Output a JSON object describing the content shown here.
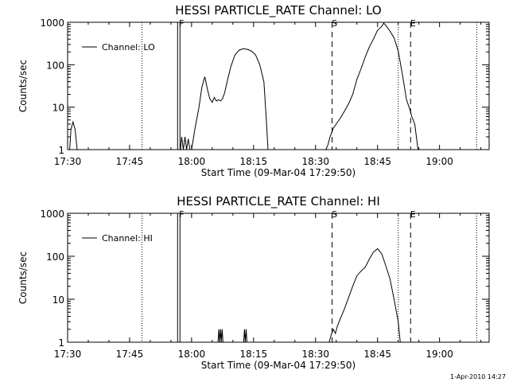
{
  "footer": {
    "timestamp": "1-Apr-2010 14:27"
  },
  "chart_data": [
    {
      "type": "line",
      "title": "HESSI PARTICLE_RATE Channel: LO",
      "xlabel": "Start Time (09-Mar-04 17:29:50)",
      "ylabel": "Counts/sec",
      "y_scale": "log",
      "xlim": [
        "17:30",
        "19:12"
      ],
      "ylim": [
        1,
        1000
      ],
      "x_ticks": [
        "17:30",
        "17:45",
        "18:00",
        "18:15",
        "18:30",
        "18:45",
        "19:00"
      ],
      "y_ticks": [
        "1",
        "10",
        "100",
        "1000"
      ],
      "legend": {
        "label": "Channel: LO",
        "position": "top-left"
      },
      "markers": [
        {
          "label": "F",
          "time": "17:57",
          "style": "solid"
        },
        {
          "label": "S",
          "time": "18:34",
          "style": "dashed"
        },
        {
          "label": "E",
          "time": "18:53",
          "style": "dashed"
        }
      ],
      "dotted_lines": [
        "17:48",
        "18:50",
        "19:09"
      ],
      "series": [
        {
          "name": "Channel: LO",
          "segments": [
            [
              [
                "17:30.5",
                1
              ],
              [
                "17:30.8",
                3
              ],
              [
                "17:31.3",
                4.5
              ],
              [
                "17:31.8",
                3
              ],
              [
                "17:32.3",
                1
              ]
            ],
            [
              [
                "17:57.3",
                1
              ],
              [
                "17:57.6",
                2
              ],
              [
                "17:58",
                1
              ],
              [
                "17:58.4",
                2
              ],
              [
                "17:58.8",
                1
              ],
              [
                "17:59.2",
                1.8
              ],
              [
                "17:59.6",
                1
              ],
              [
                "18:00",
                1
              ]
            ],
            [
              [
                "18:00",
                1
              ],
              [
                "18:00.8",
                3
              ],
              [
                "18:01.8",
                10
              ],
              [
                "18:02.5",
                30
              ],
              [
                "18:03.2",
                52
              ],
              [
                "18:03.9",
                25
              ],
              [
                "18:04.4",
                16
              ],
              [
                "18:05",
                13
              ],
              [
                "18:05.5",
                17
              ],
              [
                "18:06",
                14
              ],
              [
                "18:06.5",
                15
              ],
              [
                "18:07",
                14
              ],
              [
                "18:07.5",
                16
              ],
              [
                "18:08",
                22
              ],
              [
                "18:08.6",
                40
              ],
              [
                "18:09.5",
                90
              ],
              [
                "18:10.5",
                170
              ],
              [
                "18:11.5",
                220
              ],
              [
                "18:12.5",
                240
              ],
              [
                "18:13.5",
                230
              ],
              [
                "18:14.5",
                210
              ],
              [
                "18:15.5",
                170
              ],
              [
                "18:16.5",
                100
              ],
              [
                "18:17.5",
                40
              ],
              [
                "18:18.1",
                5
              ],
              [
                "18:18.5",
                1
              ]
            ],
            [
              [
                "18:32.5",
                1
              ],
              [
                "18:33",
                1.3
              ],
              [
                "18:33.5",
                2
              ],
              [
                "18:34.3",
                3.2
              ],
              [
                "18:35",
                4
              ],
              [
                "18:36",
                5.5
              ],
              [
                "18:37",
                8
              ],
              [
                "18:38",
                12
              ],
              [
                "18:39",
                20
              ],
              [
                "18:40",
                45
              ],
              [
                "18:41",
                80
              ],
              [
                "18:42",
                150
              ],
              [
                "18:43",
                260
              ],
              [
                "18:44",
                400
              ],
              [
                "18:45",
                650
              ],
              [
                "18:46",
                800
              ],
              [
                "18:46.5",
                950
              ],
              [
                "18:47",
                850
              ],
              [
                "18:48",
                620
              ],
              [
                "18:49",
                430
              ],
              [
                "18:50",
                210
              ],
              [
                "18:51",
                60
              ],
              [
                "18:52",
                15
              ],
              [
                "18:52.8",
                9
              ],
              [
                "18:53.3",
                6
              ],
              [
                "18:54",
                4
              ],
              [
                "18:54.8",
                1
              ]
            ]
          ]
        }
      ]
    },
    {
      "type": "line",
      "title": "HESSI PARTICLE_RATE Channel: HI",
      "xlabel": "Start Time (09-Mar-04 17:29:50)",
      "ylabel": "Counts/sec",
      "y_scale": "log",
      "xlim": [
        "17:30",
        "19:12"
      ],
      "ylim": [
        1,
        1000
      ],
      "x_ticks": [
        "17:30",
        "17:45",
        "18:00",
        "18:15",
        "18:30",
        "18:45",
        "19:00"
      ],
      "y_ticks": [
        "1",
        "10",
        "100",
        "1000"
      ],
      "legend": {
        "label": "Channel: HI",
        "position": "top-left"
      },
      "markers": [
        {
          "label": "F",
          "time": "17:57",
          "style": "solid"
        },
        {
          "label": "S",
          "time": "18:34",
          "style": "dashed"
        },
        {
          "label": "E",
          "time": "18:53",
          "style": "dashed"
        }
      ],
      "dotted_lines": [
        "17:48",
        "18:50",
        "19:09"
      ],
      "series": [
        {
          "name": "Channel: HI",
          "segments": [
            [
              [
                "18:06.4",
                1
              ],
              [
                "18:06.6",
                2
              ],
              [
                "18:06.8",
                1
              ],
              [
                "18:07",
                2
              ],
              [
                "18:07.2",
                1
              ],
              [
                "18:07.4",
                2
              ],
              [
                "18:07.6",
                1
              ]
            ],
            [
              [
                "18:12.6",
                1
              ],
              [
                "18:12.8",
                2
              ],
              [
                "18:13",
                1
              ],
              [
                "18:13.2",
                2
              ],
              [
                "18:13.4",
                1
              ]
            ],
            [
              [
                "18:33.3",
                1
              ],
              [
                "18:33.8",
                1.5
              ],
              [
                "18:34.3",
                2
              ],
              [
                "18:34.8",
                1.6
              ],
              [
                "18:35.3",
                2.4
              ],
              [
                "18:36",
                3.5
              ],
              [
                "18:37",
                6
              ],
              [
                "18:38",
                11
              ],
              [
                "18:39",
                20
              ],
              [
                "18:40",
                35
              ],
              [
                "18:41",
                45
              ],
              [
                "18:42",
                55
              ],
              [
                "18:43",
                85
              ],
              [
                "18:44",
                125
              ],
              [
                "18:45",
                150
              ],
              [
                "18:46",
                115
              ],
              [
                "18:47",
                60
              ],
              [
                "18:48",
                30
              ],
              [
                "18:49",
                10
              ],
              [
                "18:50",
                3
              ],
              [
                "18:50.5",
                1
              ]
            ]
          ]
        }
      ]
    }
  ]
}
